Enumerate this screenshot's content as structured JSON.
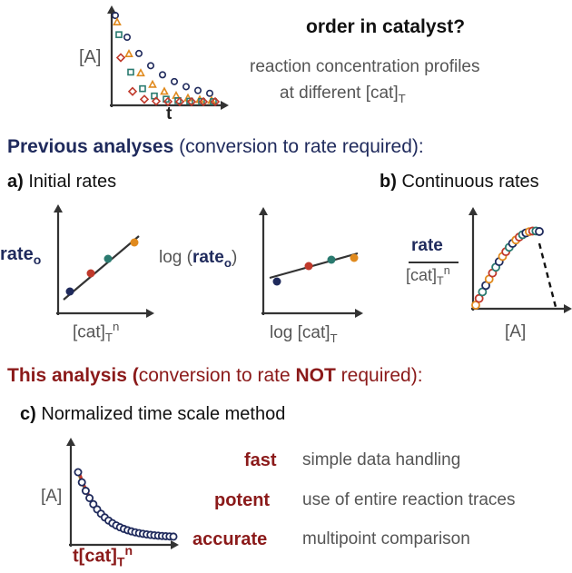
{
  "colors": {
    "navy": "#1f2a5c",
    "maroon": "#8b1a1a",
    "orange": "#e08a1e",
    "red": "#c0392b",
    "teal": "#2a7a6f",
    "axis": "#333333"
  },
  "top": {
    "ylabel": "[A]",
    "xlabel": "t",
    "question": "order in catalyst?",
    "desc_line1": "reaction concentration profiles",
    "desc_line2_pre": "at different [cat]",
    "desc_line2_sub": "T"
  },
  "previous": {
    "title_bold": "Previous analyses",
    "title_rest": " (conversion to rate required):"
  },
  "panel_a": {
    "letter": "a)",
    "title": "Initial rates",
    "plot1_ylabel": "rate",
    "plot1_ylabel_sub": "o",
    "plot1_xlabel_pre": "[cat]",
    "plot1_xlabel_sub": "T",
    "plot1_xlabel_sup": "n",
    "plot2_ylabel_pre": "log (",
    "plot2_ylabel_bold": "rate",
    "plot2_ylabel_sub": "o",
    "plot2_ylabel_post": ")",
    "plot2_xlabel_pre": "log [cat]",
    "plot2_xlabel_sub": "T"
  },
  "panel_b": {
    "letter": "b)",
    "title": "Continuous rates",
    "ylabel_top": "rate",
    "ylabel_bottom_pre": "[cat]",
    "ylabel_bottom_sub": "T",
    "ylabel_bottom_sup": "n",
    "xlabel": "[A]"
  },
  "this_analysis": {
    "title_bold": "This analysis (",
    "title_rest": "conversion to rate ",
    "title_not": "NOT",
    "title_end": " required):"
  },
  "panel_c": {
    "letter": "c)",
    "title": "Normalized time scale method",
    "ylabel": "[A]",
    "xlabel_pre": "t[cat]",
    "xlabel_sub": "T",
    "xlabel_sup": "n",
    "features": [
      {
        "key": "fast",
        "text": "simple data handling"
      },
      {
        "key": "potent",
        "text": "use of entire reaction traces"
      },
      {
        "key": "accurate",
        "text": "multipoint comparison"
      }
    ]
  }
}
